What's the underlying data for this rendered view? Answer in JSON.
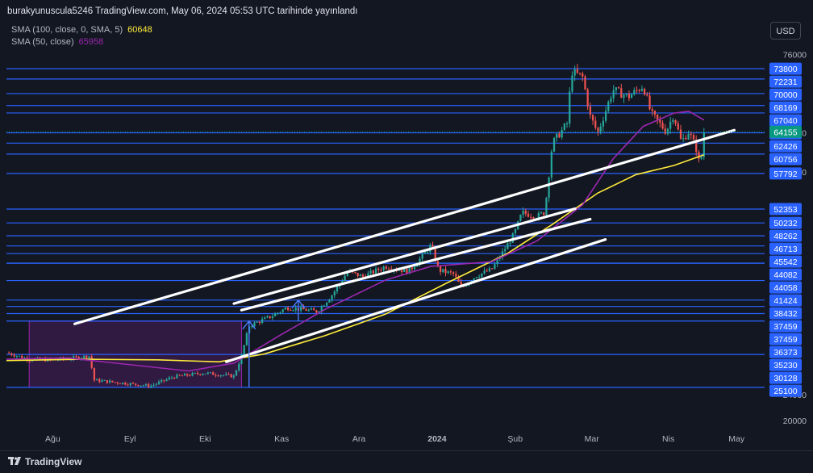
{
  "header": {
    "publish_text": "burakyunuscula5246 TradingView.com, May 06, 2024 05:53 UTC tarihinde yayınlandı"
  },
  "legend": {
    "sma100_label": "SMA (100, close, 0, SMA, 5)",
    "sma100_value": "60648",
    "sma50_label": "SMA (50, close)",
    "sma50_value": "65958"
  },
  "currency": "USD",
  "footer": {
    "brand": "TradingView"
  },
  "colors": {
    "background": "#131722",
    "up_candle": "#26a69a",
    "down_candle": "#ef5350",
    "sma100": "#ffeb3b",
    "sma50": "#9c27b0",
    "level_line": "#2962ff",
    "channel_line": "#ffffff",
    "last_price": "#089981"
  },
  "chart_data": {
    "type": "candlestick",
    "title": "",
    "y_axis_ticks": [
      76000,
      64000,
      58000,
      24000,
      20000
    ],
    "y_axis_ticks_text": [
      "76000",
      "64000",
      "58000",
      "24000",
      "20000"
    ],
    "x_axis_labels": [
      "Ağu",
      "Eyl",
      "Eki",
      "Kas",
      "Ara",
      "2024",
      "Şub",
      "Mar",
      "Nis",
      "May"
    ],
    "last_price": {
      "value": 64155,
      "text": "64155"
    },
    "horizontal_levels": [
      {
        "value": 73800,
        "text": "73800"
      },
      {
        "value": 72231,
        "text": "72231"
      },
      {
        "value": 70000,
        "text": "70000"
      },
      {
        "value": 68169,
        "text": "68169"
      },
      {
        "value": 67040,
        "text": "67040"
      },
      {
        "value": 64000,
        "text": "64000"
      },
      {
        "value": 62426,
        "text": "62426"
      },
      {
        "value": 60756,
        "text": "60756"
      },
      {
        "value": 57792,
        "text": "57792"
      },
      {
        "value": 52353,
        "text": "52353"
      },
      {
        "value": 50232,
        "text": "50232"
      },
      {
        "value": 48262,
        "text": "48262"
      },
      {
        "value": 46713,
        "text": "46713"
      },
      {
        "value": 45542,
        "text": "45542"
      },
      {
        "value": 44082,
        "text": "44082"
      },
      {
        "value": 44058,
        "text": "44058"
      },
      {
        "value": 41424,
        "text": "41424"
      },
      {
        "value": 38432,
        "text": "38432"
      },
      {
        "value": 37459,
        "text": "37459"
      },
      {
        "value": 37459,
        "text": "37459"
      },
      {
        "value": 36373,
        "text": "36373"
      },
      {
        "value": 35230,
        "text": "35230"
      },
      {
        "value": 30128,
        "text": "30128"
      },
      {
        "value": 25100,
        "text": "25100"
      }
    ],
    "sma100_last": 60648,
    "sma50_last": 65958,
    "sma100_path": [
      [
        0,
        29200
      ],
      [
        0.1,
        29400
      ],
      [
        0.2,
        29300
      ],
      [
        0.28,
        29000
      ],
      [
        0.34,
        30200
      ],
      [
        0.42,
        33000
      ],
      [
        0.5,
        36300
      ],
      [
        0.58,
        41000
      ],
      [
        0.66,
        45500
      ],
      [
        0.72,
        50000
      ],
      [
        0.78,
        54800
      ],
      [
        0.83,
        57600
      ],
      [
        0.88,
        59000
      ],
      [
        0.92,
        60648
      ]
    ],
    "sma50_path": [
      [
        0,
        29400
      ],
      [
        0.08,
        29600
      ],
      [
        0.16,
        28600
      ],
      [
        0.24,
        27600
      ],
      [
        0.3,
        28800
      ],
      [
        0.36,
        33000
      ],
      [
        0.42,
        37000
      ],
      [
        0.5,
        41500
      ],
      [
        0.56,
        43600
      ],
      [
        0.64,
        44300
      ],
      [
        0.7,
        47500
      ],
      [
        0.76,
        53000
      ],
      [
        0.8,
        60000
      ],
      [
        0.84,
        65000
      ],
      [
        0.88,
        67000
      ],
      [
        0.9,
        67300
      ],
      [
        0.92,
        65958
      ]
    ],
    "price_path": [
      [
        0,
        30400
      ],
      [
        0.03,
        29400
      ],
      [
        0.06,
        29300
      ],
      [
        0.09,
        29600
      ],
      [
        0.11,
        29900
      ],
      [
        0.115,
        26200
      ],
      [
        0.15,
        25800
      ],
      [
        0.19,
        25300
      ],
      [
        0.22,
        26700
      ],
      [
        0.26,
        27300
      ],
      [
        0.3,
        26800
      ],
      [
        0.31,
        29900
      ],
      [
        0.32,
        34500
      ],
      [
        0.33,
        35000
      ],
      [
        0.35,
        36000
      ],
      [
        0.37,
        37300
      ],
      [
        0.39,
        37000
      ],
      [
        0.41,
        36700
      ],
      [
        0.43,
        39300
      ],
      [
        0.45,
        42800
      ],
      [
        0.47,
        42000
      ],
      [
        0.5,
        43600
      ],
      [
        0.53,
        42800
      ],
      [
        0.55,
        45300
      ],
      [
        0.56,
        46800
      ],
      [
        0.57,
        43000
      ],
      [
        0.59,
        42400
      ],
      [
        0.6,
        40300
      ],
      [
        0.62,
        42200
      ],
      [
        0.64,
        43100
      ],
      [
        0.65,
        44900
      ],
      [
        0.67,
        48600
      ],
      [
        0.68,
        51800
      ],
      [
        0.7,
        51200
      ],
      [
        0.71,
        51900
      ],
      [
        0.72,
        62400
      ],
      [
        0.74,
        65500
      ],
      [
        0.745,
        73400
      ],
      [
        0.76,
        72500
      ],
      [
        0.77,
        66500
      ],
      [
        0.78,
        64000
      ],
      [
        0.8,
        70600
      ],
      [
        0.82,
        69500
      ],
      [
        0.84,
        71200
      ],
      [
        0.85,
        67000
      ],
      [
        0.87,
        64200
      ],
      [
        0.88,
        66800
      ],
      [
        0.89,
        62600
      ],
      [
        0.9,
        64200
      ],
      [
        0.91,
        61500
      ],
      [
        0.915,
        58600
      ],
      [
        0.92,
        64155
      ]
    ],
    "channels": [
      {
        "from": [
          0.09,
          34800
        ],
        "to": [
          0.96,
          64400
        ]
      },
      {
        "from": [
          0.3,
          37900
        ],
        "to": [
          0.75,
          52400
        ]
      },
      {
        "from": [
          0.31,
          36900
        ],
        "to": [
          0.77,
          50800
        ]
      },
      {
        "from": [
          0.29,
          29000
        ],
        "to": [
          0.79,
          47700
        ]
      }
    ],
    "zones": [
      {
        "from": [
          0.03,
          25100
        ],
        "to": [
          0.31,
          35230
        ]
      }
    ],
    "arrows": [
      {
        "at": [
          0.32,
          25100
        ],
        "to": [
          0.32,
          35230
        ]
      },
      {
        "at": [
          0.385,
          35230
        ],
        "to": [
          0.385,
          38432
        ]
      }
    ],
    "xlabel": "",
    "ylabel": ""
  }
}
